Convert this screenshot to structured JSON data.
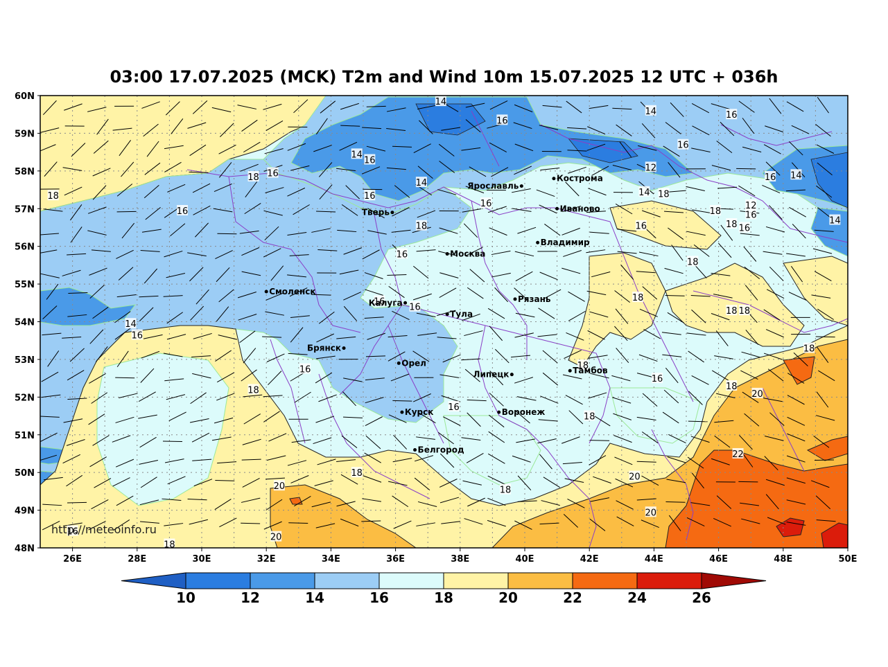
{
  "title": "03:00 17.07.2025 (MCK) T2m and Wind 10m 15.07.2025 12 UTC + 036h",
  "watermark": "http://meteoinfo.ru",
  "lat_labels": [
    "60N",
    "59N",
    "58N",
    "57N",
    "56N",
    "55N",
    "54N",
    "53N",
    "52N",
    "51N",
    "50N",
    "49N",
    "48N"
  ],
  "lon_labels": [
    "26E",
    "28E",
    "30E",
    "32E",
    "34E",
    "36E",
    "38E",
    "40E",
    "42E",
    "44E",
    "46E",
    "48E",
    "50E"
  ],
  "colorbar": {
    "ticks": [
      "10",
      "12",
      "14",
      "16",
      "18",
      "20",
      "22",
      "24",
      "26"
    ],
    "colors": {
      "below_10": "#1f5fc4",
      "10_12": "#2b7de0",
      "12_14": "#4a9ae8",
      "14_16": "#9ccdf5",
      "16_18": "#dcfbfb",
      "18_20": "#fff3a6",
      "20_22": "#fbbd43",
      "22_24": "#f56a12",
      "24_26": "#db1c0b",
      "above_26": "#a00a05"
    }
  },
  "cities": [
    {
      "name": "Смоленск",
      "lon": 32.0,
      "lat": 54.8
    },
    {
      "name": "Тверь",
      "lon": 35.9,
      "lat": 56.9
    },
    {
      "name": "Ярославль",
      "lon": 39.9,
      "lat": 57.6
    },
    {
      "name": "Кострома",
      "lon": 40.9,
      "lat": 57.8
    },
    {
      "name": "Иваново",
      "lon": 41.0,
      "lat": 57.0
    },
    {
      "name": "Москва",
      "lon": 37.6,
      "lat": 55.8
    },
    {
      "name": "Владимир",
      "lon": 40.4,
      "lat": 56.1
    },
    {
      "name": "Калуга",
      "lon": 36.3,
      "lat": 54.5
    },
    {
      "name": "Тула",
      "lon": 37.6,
      "lat": 54.2
    },
    {
      "name": "Рязань",
      "lon": 39.7,
      "lat": 54.6
    },
    {
      "name": "Брянск",
      "lon": 34.4,
      "lat": 53.3
    },
    {
      "name": "Орел",
      "lon": 36.1,
      "lat": 52.9
    },
    {
      "name": "Липецк",
      "lon": 39.6,
      "lat": 52.6
    },
    {
      "name": "Тамбов",
      "lon": 41.4,
      "lat": 52.7
    },
    {
      "name": "Курск",
      "lon": 36.2,
      "lat": 51.6
    },
    {
      "name": "Воронеж",
      "lon": 39.2,
      "lat": 51.6
    },
    {
      "name": "Белгород",
      "lon": 36.6,
      "lat": 50.6
    }
  ],
  "isotherm_labels": [
    {
      "text": "14",
      "lon": 37.4,
      "lat": 59.85
    },
    {
      "text": "14",
      "lon": 43.9,
      "lat": 59.6
    },
    {
      "text": "16",
      "lon": 46.4,
      "lat": 59.5
    },
    {
      "text": "16",
      "lon": 39.3,
      "lat": 59.35
    },
    {
      "text": "16",
      "lon": 44.9,
      "lat": 58.7
    },
    {
      "text": "14",
      "lon": 34.8,
      "lat": 58.45
    },
    {
      "text": "16",
      "lon": 35.2,
      "lat": 58.3
    },
    {
      "text": "12",
      "lon": 43.9,
      "lat": 58.1
    },
    {
      "text": "18",
      "lon": 31.6,
      "lat": 57.85
    },
    {
      "text": "16",
      "lon": 32.2,
      "lat": 57.95
    },
    {
      "text": "16",
      "lon": 47.6,
      "lat": 57.85
    },
    {
      "text": "14",
      "lon": 48.4,
      "lat": 57.9
    },
    {
      "text": "14",
      "lon": 36.8,
      "lat": 57.7
    },
    {
      "text": "14",
      "lon": 43.7,
      "lat": 57.45
    },
    {
      "text": "18",
      "lon": 44.3,
      "lat": 57.4
    },
    {
      "text": "18",
      "lon": 25.4,
      "lat": 57.35
    },
    {
      "text": "16",
      "lon": 35.2,
      "lat": 57.35
    },
    {
      "text": "16",
      "lon": 38.8,
      "lat": 57.15
    },
    {
      "text": "12",
      "lon": 47.0,
      "lat": 57.1
    },
    {
      "text": "16",
      "lon": 29.4,
      "lat": 56.95
    },
    {
      "text": "18",
      "lon": 45.9,
      "lat": 56.95
    },
    {
      "text": "16",
      "lon": 47.0,
      "lat": 56.85
    },
    {
      "text": "14",
      "lon": 49.6,
      "lat": 56.7
    },
    {
      "text": "18",
      "lon": 36.8,
      "lat": 56.55
    },
    {
      "text": "16",
      "lon": 43.6,
      "lat": 56.55
    },
    {
      "text": "18",
      "lon": 46.4,
      "lat": 56.6
    },
    {
      "text": "16",
      "lon": 46.8,
      "lat": 56.5
    },
    {
      "text": "16",
      "lon": 36.2,
      "lat": 55.8
    },
    {
      "text": "18",
      "lon": 45.2,
      "lat": 55.6
    },
    {
      "text": "16",
      "lon": 35.5,
      "lat": 54.55
    },
    {
      "text": "16",
      "lon": 36.6,
      "lat": 54.4
    },
    {
      "text": "18",
      "lon": 43.5,
      "lat": 54.65
    },
    {
      "text": "18",
      "lon": 46.4,
      "lat": 54.3
    },
    {
      "text": "18",
      "lon": 46.8,
      "lat": 54.3
    },
    {
      "text": "14",
      "lon": 27.8,
      "lat": 53.95
    },
    {
      "text": "16",
      "lon": 28.0,
      "lat": 53.65
    },
    {
      "text": "18",
      "lon": 48.8,
      "lat": 53.3
    },
    {
      "text": "18",
      "lon": 41.8,
      "lat": 52.85
    },
    {
      "text": "16",
      "lon": 33.2,
      "lat": 52.75
    },
    {
      "text": "16",
      "lon": 44.1,
      "lat": 52.5
    },
    {
      "text": "18",
      "lon": 31.6,
      "lat": 52.2
    },
    {
      "text": "18",
      "lon": 46.4,
      "lat": 52.3
    },
    {
      "text": "20",
      "lon": 47.2,
      "lat": 52.1
    },
    {
      "text": "16",
      "lon": 37.8,
      "lat": 51.75
    },
    {
      "text": "18",
      "lon": 42.0,
      "lat": 51.5
    },
    {
      "text": "22",
      "lon": 46.6,
      "lat": 50.5
    },
    {
      "text": "18",
      "lon": 34.8,
      "lat": 50.0
    },
    {
      "text": "20",
      "lon": 43.4,
      "lat": 49.9
    },
    {
      "text": "20",
      "lon": 32.4,
      "lat": 49.65
    },
    {
      "text": "18",
      "lon": 39.4,
      "lat": 49.55
    },
    {
      "text": "20",
      "lon": 43.9,
      "lat": 48.95
    },
    {
      "text": "16",
      "lon": 26.0,
      "lat": 48.45
    },
    {
      "text": "20",
      "lon": 32.3,
      "lat": 48.3
    },
    {
      "text": "18",
      "lon": 29.0,
      "lat": 48.1
    }
  ]
}
